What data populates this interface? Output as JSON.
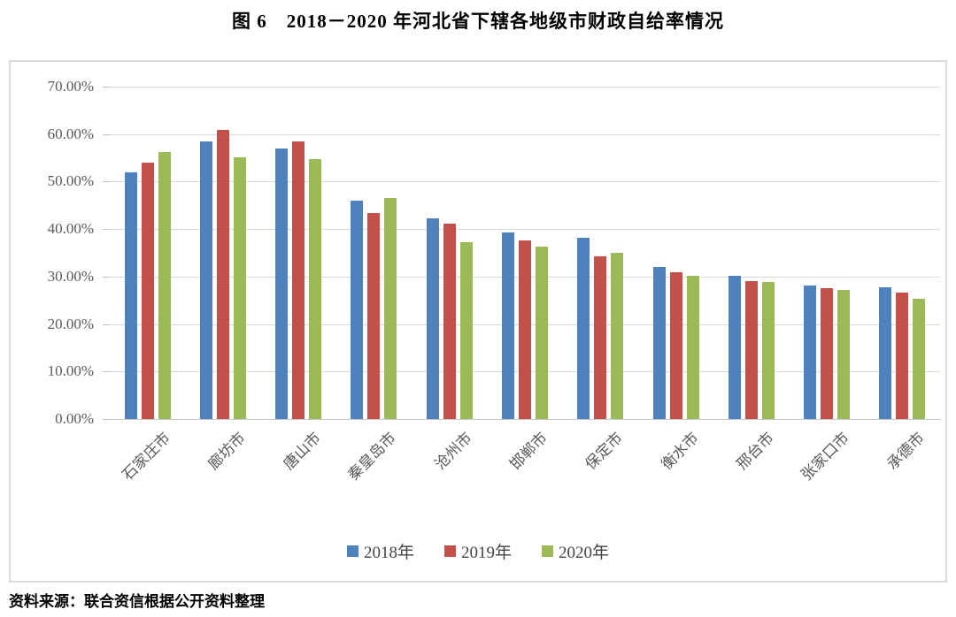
{
  "header": {
    "title": "图 6　2018－2020 年河北省下辖各地级市财政自给率情况"
  },
  "footer": {
    "source_note": "资料来源：联合资信根据公开资料整理"
  },
  "colors": {
    "series_2018": "#4F81BD",
    "series_2019": "#C4504C",
    "series_2020": "#9BBB59",
    "gridline": "#D9D9D9",
    "axis_text": "#595959",
    "frame_border": "#D9D9D9"
  },
  "chart_data": {
    "type": "bar",
    "title": "图 6　2018－2020 年河北省下辖各地级市财政自给率情况",
    "categories": [
      "石家庄市",
      "廊坊市",
      "唐山市",
      "秦皇岛市",
      "沧州市",
      "邯郸市",
      "保定市",
      "衡水市",
      "邢台市",
      "张家口市",
      "承德市"
    ],
    "series": [
      {
        "name": "2018年",
        "color": "#4F81BD",
        "values": [
          52.0,
          58.4,
          57.0,
          45.9,
          42.2,
          39.2,
          38.2,
          32.1,
          30.1,
          28.1,
          27.8
        ]
      },
      {
        "name": "2019年",
        "color": "#C4504C",
        "values": [
          54.0,
          60.8,
          58.5,
          43.4,
          41.2,
          37.6,
          34.2,
          31.0,
          29.0,
          27.5,
          26.7
        ]
      },
      {
        "name": "2020年",
        "color": "#9BBB59",
        "values": [
          56.2,
          55.2,
          54.8,
          46.5,
          37.3,
          36.3,
          35.0,
          30.2,
          28.8,
          27.1,
          25.4
        ]
      }
    ],
    "xlabel": "",
    "ylabel": "",
    "ylim": [
      0,
      70
    ],
    "ytick_step": 10,
    "yticks": [
      "70.00%",
      "60.00%",
      "50.00%",
      "40.00%",
      "30.00%",
      "20.00%",
      "10.00%",
      "0.00%"
    ],
    "value_format": "percent",
    "grid": true,
    "legend_position": "bottom"
  }
}
